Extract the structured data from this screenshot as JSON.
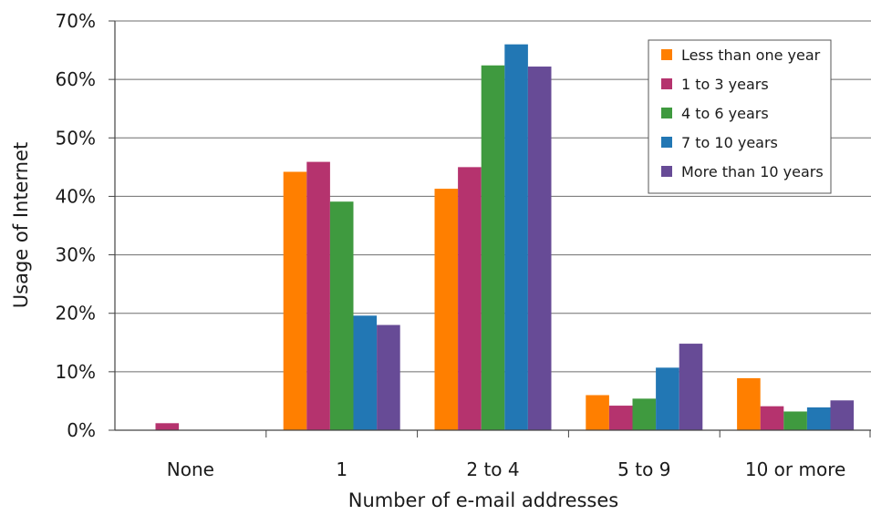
{
  "chart_data": {
    "type": "bar",
    "title": "",
    "xlabel": "Number of e-mail addresses",
    "ylabel": "Usage of Internet",
    "categories": [
      "None",
      "1",
      "2 to 4",
      "5 to 9",
      "10 or more"
    ],
    "y_ticks": [
      "0%",
      "10%",
      "20%",
      "30%",
      "40%",
      "50%",
      "60%",
      "70%"
    ],
    "ylim": [
      0,
      70
    ],
    "grid": true,
    "legend_position": "top-right",
    "series": [
      {
        "name": "Less than one year",
        "color": "#ff7f00",
        "values": [
          0,
          44.2,
          41.3,
          6.0,
          8.9
        ]
      },
      {
        "name": "1 to 3 years",
        "color": "#b5336e",
        "values": [
          1.2,
          45.9,
          45.0,
          4.2,
          4.1
        ]
      },
      {
        "name": "4 to 6 years",
        "color": "#3f9a3f",
        "values": [
          0,
          39.1,
          62.4,
          5.4,
          3.2
        ]
      },
      {
        "name": "7 to 10 years",
        "color": "#2277b4",
        "values": [
          0,
          19.6,
          66.0,
          10.7,
          3.9
        ]
      },
      {
        "name": "More than 10 years",
        "color": "#674b96",
        "values": [
          0,
          18.0,
          62.2,
          14.8,
          5.1
        ]
      }
    ]
  }
}
